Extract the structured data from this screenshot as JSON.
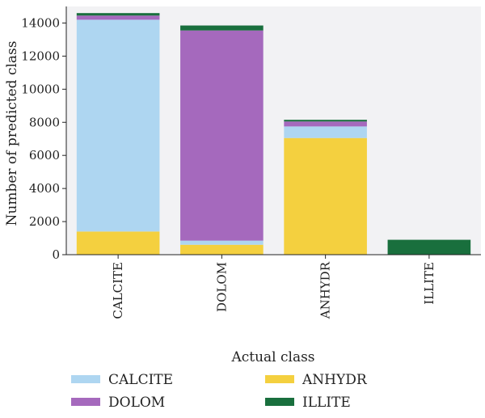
{
  "chart_data": {
    "type": "bar",
    "stacked": true,
    "categories": [
      "CALCITE",
      "DOLOM",
      "ANHYDR",
      "ILLITE"
    ],
    "series": [
      {
        "name": "ANHYDR",
        "color": "#f4d03f",
        "values": [
          1400,
          600,
          7050,
          0
        ]
      },
      {
        "name": "CALCITE",
        "color": "#aed6f1",
        "values": [
          12800,
          250,
          700,
          0
        ]
      },
      {
        "name": "DOLOM",
        "color": "#a569bd",
        "values": [
          250,
          12700,
          300,
          0
        ]
      },
      {
        "name": "ILLITE",
        "color": "#196f3d",
        "values": [
          150,
          300,
          100,
          900
        ]
      }
    ],
    "xlabel": "Actual class",
    "ylabel": "Number of predicted class",
    "ylim": [
      0,
      15000
    ],
    "yticks": [
      0,
      2000,
      4000,
      6000,
      8000,
      10000,
      12000,
      14000
    ],
    "grid": false,
    "plot_background": "#f2f2f4",
    "legend": {
      "placement": "bottom",
      "entries": [
        {
          "name": "CALCITE",
          "color": "#aed6f1"
        },
        {
          "name": "ANHYDR",
          "color": "#f4d03f"
        },
        {
          "name": "DOLOM",
          "color": "#a569bd"
        },
        {
          "name": "ILLITE",
          "color": "#196f3d"
        }
      ]
    }
  }
}
